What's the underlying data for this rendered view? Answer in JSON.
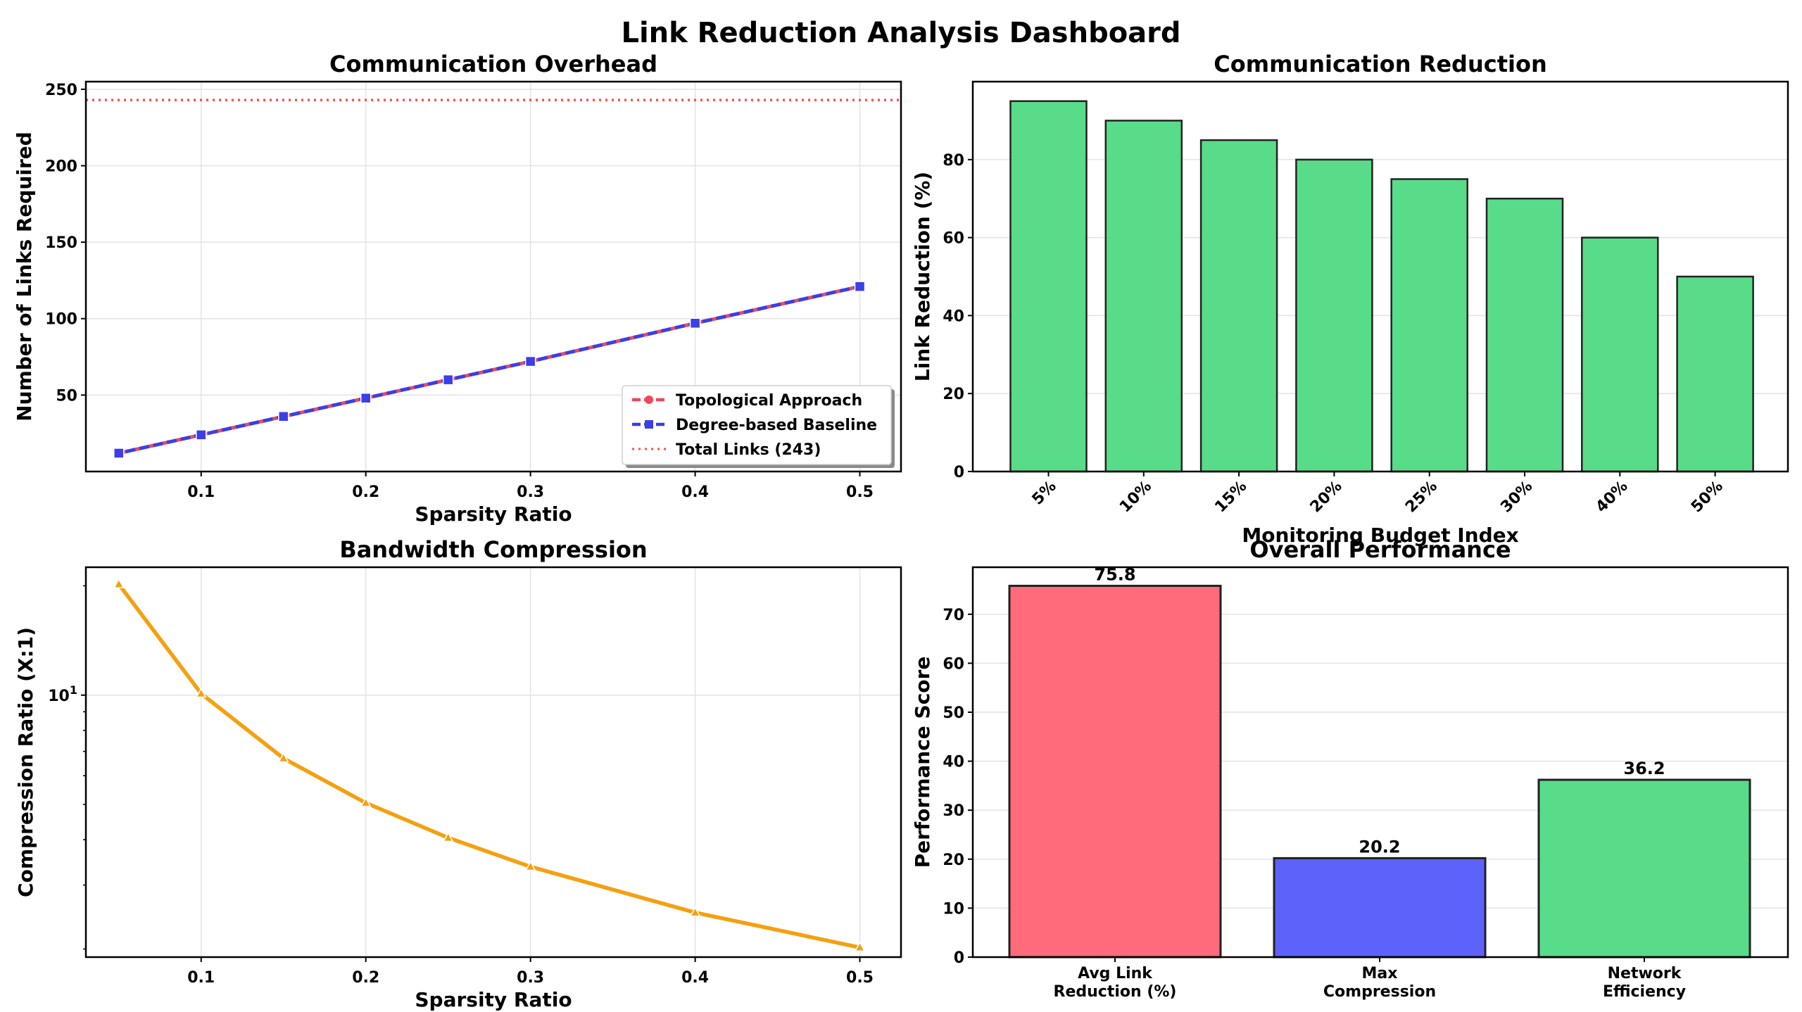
{
  "dashboard": {
    "title": "Link Reduction Analysis Dashboard"
  },
  "chart_data": [
    {
      "id": "overhead",
      "type": "line",
      "title": "Communication Overhead",
      "xlabel": "Sparsity Ratio",
      "ylabel": "Number of Links Required",
      "x": [
        0.05,
        0.1,
        0.15,
        0.2,
        0.25,
        0.3,
        0.4,
        0.5
      ],
      "xlim": [
        0.03,
        0.525
      ],
      "ylim": [
        0,
        255
      ],
      "xticks": [
        0.1,
        0.2,
        0.3,
        0.4,
        0.5
      ],
      "xtick_labels": [
        "0.1",
        "0.2",
        "0.3",
        "0.4",
        "0.5"
      ],
      "yticks": [
        50,
        100,
        150,
        200,
        250
      ],
      "ytick_labels": [
        "50",
        "100",
        "150",
        "200",
        "250"
      ],
      "grid": true,
      "legend_position": "lower-right",
      "series": [
        {
          "name": "Topological Approach",
          "values": [
            12,
            24,
            36,
            48,
            60,
            72,
            97,
            121
          ],
          "color": "#f0475a",
          "marker": "circle",
          "linestyle": "dashed"
        },
        {
          "name": "Degree-based Baseline",
          "values": [
            12,
            24,
            36,
            48,
            60,
            72,
            97,
            121
          ],
          "color": "#3a3fe6",
          "marker": "square",
          "linestyle": "dashed"
        }
      ],
      "reference_line": {
        "name": "Total Links (243)",
        "value": 243,
        "color": "#ff4d4d",
        "linestyle": "dotted"
      }
    },
    {
      "id": "reduction",
      "type": "bar",
      "title": "Communication Reduction",
      "xlabel": "Monitoring Budget Index",
      "ylabel": "Link Reduction (%)",
      "categories": [
        "5%",
        "10%",
        "15%",
        "20%",
        "25%",
        "30%",
        "40%",
        "50%"
      ],
      "values": [
        95,
        90,
        85,
        80,
        75,
        70,
        60,
        50
      ],
      "ylim": [
        0,
        100
      ],
      "yticks": [
        0,
        20,
        40,
        60,
        80
      ],
      "ytick_labels": [
        "0",
        "20",
        "40",
        "60",
        "80"
      ],
      "grid": true,
      "color": "#58dc8a",
      "edge_color": "#222222"
    },
    {
      "id": "compression",
      "type": "line",
      "title": "Bandwidth Compression",
      "xlabel": "Sparsity Ratio",
      "ylabel": "Compression Ratio (X:1)",
      "yscale": "log",
      "x": [
        0.05,
        0.1,
        0.15,
        0.2,
        0.25,
        0.3,
        0.4,
        0.5
      ],
      "values": [
        20.2,
        10.1,
        6.7,
        5.05,
        4.05,
        3.37,
        2.52,
        2.02
      ],
      "xlim": [
        0.03,
        0.525
      ],
      "ylim": [
        1.9,
        22.5
      ],
      "xticks": [
        0.1,
        0.2,
        0.3,
        0.4,
        0.5
      ],
      "xtick_labels": [
        "0.1",
        "0.2",
        "0.3",
        "0.4",
        "0.5"
      ],
      "ytick_major": {
        "value": 10,
        "base": "10",
        "exp": "1"
      },
      "grid": true,
      "color": "#f5a010",
      "marker": "triangle"
    },
    {
      "id": "performance",
      "type": "bar",
      "title": "Overall Performance",
      "ylabel": "Performance Score",
      "categories": [
        [
          "Avg Link",
          "Reduction (%)"
        ],
        [
          "Max",
          "Compression"
        ],
        [
          "Network",
          "Efficiency"
        ]
      ],
      "values": [
        75.8,
        20.2,
        36.2
      ],
      "value_labels": [
        "75.8",
        "20.2",
        "36.2"
      ],
      "colors": [
        "#ff6b7a",
        "#5d62fa",
        "#58dc8a"
      ],
      "ylim": [
        0,
        79.6
      ],
      "yticks": [
        0,
        10,
        20,
        30,
        40,
        50,
        60,
        70
      ],
      "ytick_labels": [
        "0",
        "10",
        "20",
        "30",
        "40",
        "50",
        "60",
        "70"
      ],
      "grid": true,
      "edge_color": "#222222"
    }
  ]
}
